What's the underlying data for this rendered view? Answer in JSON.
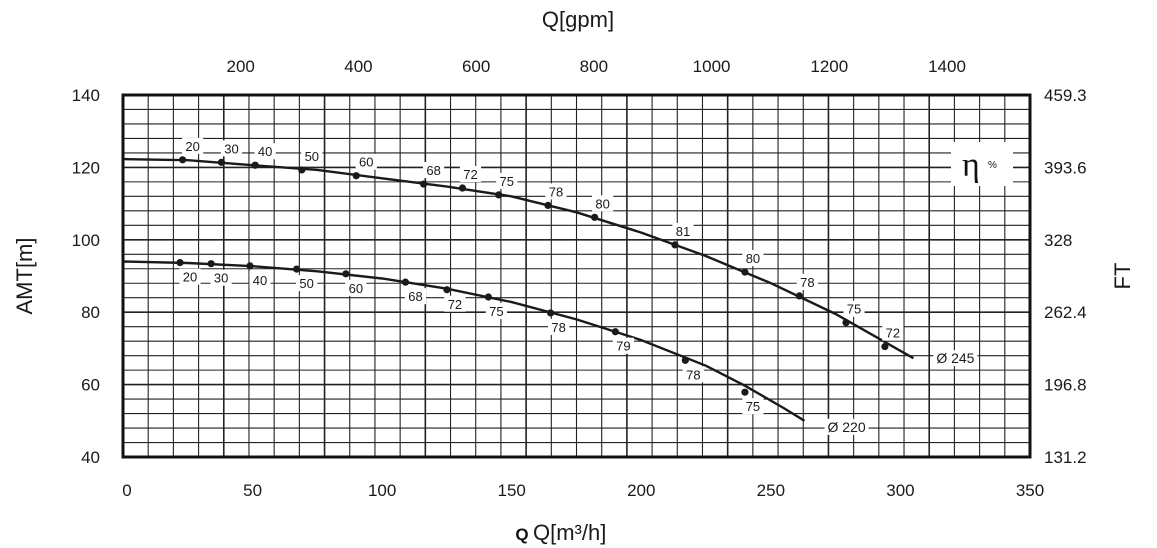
{
  "chart_data": {
    "type": "line",
    "title": "",
    "xlabel": "Q[m³/h]",
    "xlabel_prefix": "Q",
    "xlabel_top": "Q[gpm]",
    "ylabel": "AMT[m]",
    "ylabel_right": "FT",
    "xlim": [
      0,
      350
    ],
    "ylim": [
      40,
      140
    ],
    "x_ticks": [
      "0",
      "50",
      "100",
      "150",
      "200",
      "250",
      "300",
      "350"
    ],
    "y_ticks": [
      "40",
      "60",
      "80",
      "100",
      "120",
      "140"
    ],
    "top_ticks": [
      {
        "value": 200,
        "label": "200"
      },
      {
        "value": 400,
        "label": "400"
      },
      {
        "value": 600,
        "label": "600"
      },
      {
        "value": 800,
        "label": "800"
      },
      {
        "value": 1000,
        "label": "1000"
      },
      {
        "value": 1200,
        "label": "1200"
      },
      {
        "value": 1400,
        "label": "1400"
      }
    ],
    "right_ticks": [
      {
        "at": 40,
        "label": "131.2"
      },
      {
        "at": 60,
        "label": "196.8"
      },
      {
        "at": 80,
        "label": "262.4"
      },
      {
        "at": 100,
        "label": "328"
      },
      {
        "at": 120,
        "label": "393.6"
      },
      {
        "at": 140,
        "label": "459.3"
      }
    ],
    "grid": true,
    "efficiency_symbol": "η",
    "efficiency_unit": "%",
    "series": [
      {
        "name": "Ø 245",
        "curve": [
          [
            0,
            122.3
          ],
          [
            25,
            122
          ],
          [
            50,
            120.6
          ],
          [
            75,
            119.3
          ],
          [
            100,
            117
          ],
          [
            125,
            114.7
          ],
          [
            150,
            112
          ],
          [
            175,
            107.6
          ],
          [
            200,
            102
          ],
          [
            225,
            95.5
          ],
          [
            250,
            88
          ],
          [
            275,
            79.5
          ],
          [
            290,
            73.4
          ],
          [
            305,
            67.3
          ]
        ],
        "points": [
          {
            "x": 23,
            "y": 122.1,
            "eff": "20"
          },
          {
            "x": 38,
            "y": 121.4,
            "eff": "30"
          },
          {
            "x": 51,
            "y": 120.6,
            "eff": "40"
          },
          {
            "x": 69,
            "y": 119.3,
            "eff": "50"
          },
          {
            "x": 90,
            "y": 117.7,
            "eff": "60"
          },
          {
            "x": 116,
            "y": 115.4,
            "eff": "68"
          },
          {
            "x": 131,
            "y": 114.3,
            "eff": "72"
          },
          {
            "x": 145,
            "y": 112.4,
            "eff": "75"
          },
          {
            "x": 164,
            "y": 109.5,
            "eff": "78"
          },
          {
            "x": 182,
            "y": 106.2,
            "eff": "80"
          },
          {
            "x": 213,
            "y": 98.6,
            "eff": "81"
          },
          {
            "x": 240,
            "y": 91.1,
            "eff": "80"
          },
          {
            "x": 261,
            "y": 84.5,
            "eff": "78"
          },
          {
            "x": 279,
            "y": 77.1,
            "eff": "75"
          },
          {
            "x": 294,
            "y": 70.5,
            "eff": "72"
          }
        ]
      },
      {
        "name": "Ø 220",
        "curve": [
          [
            0,
            94
          ],
          [
            25,
            93.6
          ],
          [
            50,
            92.7
          ],
          [
            75,
            91.3
          ],
          [
            100,
            89.3
          ],
          [
            125,
            86.5
          ],
          [
            150,
            82.8
          ],
          [
            175,
            78
          ],
          [
            200,
            72.3
          ],
          [
            225,
            65.2
          ],
          [
            240,
            59.7
          ],
          [
            255,
            53.5
          ],
          [
            263,
            50
          ]
        ],
        "points": [
          {
            "x": 22,
            "y": 93.7,
            "eff": "20"
          },
          {
            "x": 34,
            "y": 93.4,
            "eff": "30"
          },
          {
            "x": 49,
            "y": 92.8,
            "eff": "40"
          },
          {
            "x": 67,
            "y": 91.9,
            "eff": "50"
          },
          {
            "x": 86,
            "y": 90.6,
            "eff": "60"
          },
          {
            "x": 109,
            "y": 88.3,
            "eff": "68"
          },
          {
            "x": 125,
            "y": 86.2,
            "eff": "72"
          },
          {
            "x": 141,
            "y": 84.2,
            "eff": "75"
          },
          {
            "x": 165,
            "y": 79.8,
            "eff": "78"
          },
          {
            "x": 190,
            "y": 74.6,
            "eff": "79"
          },
          {
            "x": 217,
            "y": 66.7,
            "eff": "78"
          },
          {
            "x": 240,
            "y": 57.9,
            "eff": "75"
          }
        ]
      }
    ]
  }
}
